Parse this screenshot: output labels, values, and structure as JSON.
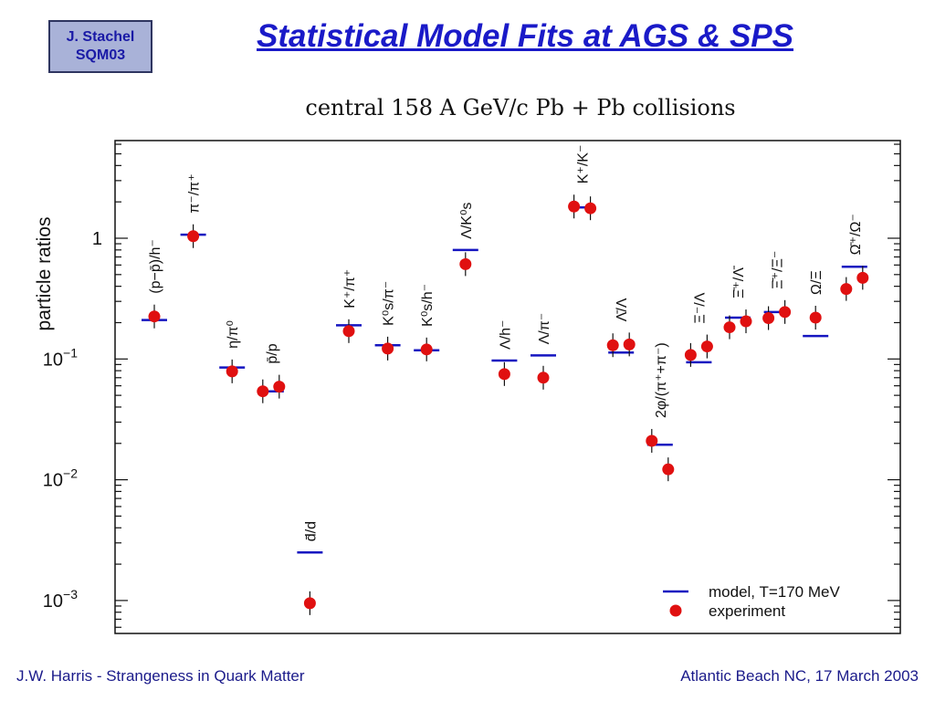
{
  "slide": {
    "author_line1": "J. Stachel",
    "author_line2": "SQM03",
    "title": "Statistical Model Fits at AGS & SPS"
  },
  "footer": {
    "left": "J.W. Harris - Strangeness in Quark Matter",
    "right": "Atlantic Beach NC, 17 March 2003"
  },
  "colors": {
    "model": "#1515c0",
    "experiment": "#e01010",
    "title": "#1a1ac8"
  },
  "chart_data": {
    "type": "scatter",
    "title": "central 158 A GeV/c Pb + Pb collisions",
    "ylabel": "particle ratios",
    "yscale": "log",
    "ylim": [
      0.0006,
      8
    ],
    "yticks": [
      {
        "value": 1,
        "label": "1"
      },
      {
        "value": 0.1,
        "label": "10",
        "exp": "−1"
      },
      {
        "value": 0.01,
        "label": "10",
        "exp": "−2"
      },
      {
        "value": 0.001,
        "label": "10",
        "exp": "−3"
      }
    ],
    "legend": {
      "placement": "bottom-right",
      "model": "model, T=170 MeV",
      "experiment": "experiment"
    },
    "ratios": [
      {
        "label": "(p−p̄)/h⁻",
        "model": 0.21,
        "experiment": [
          0.225
        ]
      },
      {
        "label": "π⁻/π⁺",
        "model": 1.07,
        "experiment": [
          1.04
        ]
      },
      {
        "label": "η/π⁰",
        "model": 0.085,
        "experiment": [
          0.079
        ]
      },
      {
        "label": "p̄/p",
        "model": 0.054,
        "experiment": [
          0.054,
          0.059
        ]
      },
      {
        "label": "d̄/d",
        "model": 0.0025,
        "experiment": [
          0.00095
        ]
      },
      {
        "label": "K⁺/π⁺",
        "model": 0.19,
        "experiment": [
          0.17
        ]
      },
      {
        "label": "K⁰s/π⁻",
        "model": 0.13,
        "experiment": [
          0.122
        ]
      },
      {
        "label": "K⁰s/h⁻",
        "model": 0.118,
        "experiment": [
          0.12
        ]
      },
      {
        "label": "Λ/K⁰s",
        "model": 0.8,
        "experiment": [
          0.61
        ]
      },
      {
        "label": "Λ/h⁻",
        "model": 0.097,
        "experiment": [
          0.075
        ]
      },
      {
        "label": "Λ/π⁻",
        "model": 0.107,
        "experiment": [
          0.07
        ]
      },
      {
        "label": "K⁺/K⁻",
        "model": 1.8,
        "experiment": [
          1.83,
          1.77
        ]
      },
      {
        "label": "Λ̄/Λ",
        "model": 0.113,
        "experiment": [
          0.13,
          0.132
        ]
      },
      {
        "label": "2φ/(π⁺+π⁻)",
        "model": 0.0195,
        "experiment": [
          0.021,
          0.0122
        ]
      },
      {
        "label": "Ξ⁻/Λ",
        "model": 0.094,
        "experiment": [
          0.108,
          0.127
        ]
      },
      {
        "label": "Ξ̄⁺/Λ̄",
        "model": 0.22,
        "experiment": [
          0.183,
          0.205
        ]
      },
      {
        "label": "Ξ̄⁺/Ξ⁻",
        "model": 0.245,
        "experiment": [
          0.218,
          0.245
        ]
      },
      {
        "label": "Ω/Ξ",
        "model": 0.155,
        "experiment": [
          0.22
        ]
      },
      {
        "label": "Ω̄⁺/Ω⁻",
        "model": 0.58,
        "experiment": [
          0.38,
          0.47
        ]
      }
    ]
  }
}
